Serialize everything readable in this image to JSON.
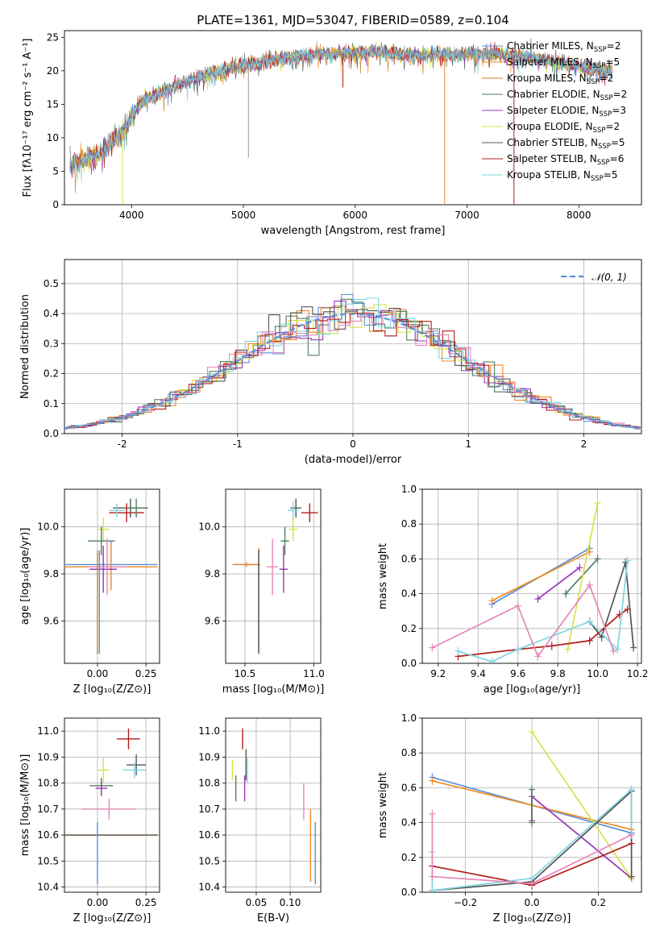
{
  "figure": {
    "title": "PLATE=1361, MJD=53047, FIBERID=0589, z=0.104"
  },
  "colors": {
    "chabrier_miles": "#5b8fd9",
    "salpeter_miles": "#f08a24",
    "kroupa_miles": "#d0801e",
    "chabrier_elodie": "#4f7f5f",
    "salpeter_elodie": "#9b35b5",
    "kroupa_elodie": "#d9e04a",
    "chabrier_stelib": "#555555",
    "salpeter_stelib": "#b51d1d",
    "kroupa_stelib": "#7fd6e0",
    "pink": "#e687b8",
    "normal_dashed": "#5b8fd9"
  },
  "chart_data": [
    {
      "type": "line",
      "name": "spectrum",
      "xlabel": "wavelength [Angstrom, rest frame]",
      "ylabel": "Flux [fλ10⁻¹⁷ erg cm⁻² s⁻¹ A⁻¹]",
      "xlim": [
        3400,
        8560
      ],
      "ylim": [
        0,
        26
      ],
      "xticks": [
        4000,
        5000,
        6000,
        7000,
        8000
      ],
      "yticks": [
        0,
        5,
        10,
        15,
        20,
        25
      ],
      "grid": false,
      "legend": [
        {
          "label": "Chabrier MILES, N",
          "sub": "SSP",
          "suffix": "=2",
          "color": "chabrier_miles"
        },
        {
          "label": "Salpeter MILES, N",
          "sub": "SSP",
          "suffix": "=5",
          "color": "salpeter_miles"
        },
        {
          "label": "Kroupa MILES, N",
          "sub": "SSP",
          "suffix": "=2",
          "color": "kroupa_miles"
        },
        {
          "label": "Chabrier ELODIE, N",
          "sub": "SSP",
          "suffix": "=2",
          "color": "chabrier_elodie"
        },
        {
          "label": "Salpeter ELODIE, N",
          "sub": "SSP",
          "suffix": "=3",
          "color": "salpeter_elodie"
        },
        {
          "label": "Kroupa ELODIE, N",
          "sub": "SSP",
          "suffix": "=2",
          "color": "kroupa_elodie"
        },
        {
          "label": "Chabrier STELIB, N",
          "sub": "SSP",
          "suffix": "=5",
          "color": "chabrier_stelib"
        },
        {
          "label": "Salpeter STELIB, N",
          "sub": "SSP",
          "suffix": "=6",
          "color": "salpeter_stelib"
        },
        {
          "label": "Kroupa STELIB, N",
          "sub": "SSP",
          "suffix": "=5",
          "color": "kroupa_stelib"
        }
      ],
      "continuum": [
        [
          3450,
          5.8
        ],
        [
          3600,
          6.8
        ],
        [
          3700,
          7.5
        ],
        [
          3850,
          10.0
        ],
        [
          3950,
          11.2
        ],
        [
          4000,
          13.5
        ],
        [
          4100,
          15.5
        ],
        [
          4300,
          17.0
        ],
        [
          4500,
          18.5
        ],
        [
          4700,
          19.5
        ],
        [
          4900,
          20.5
        ],
        [
          5100,
          21.0
        ],
        [
          5300,
          21.8
        ],
        [
          5500,
          22.2
        ],
        [
          5700,
          22.5
        ],
        [
          5900,
          22.6
        ],
        [
          6100,
          22.8
        ],
        [
          6300,
          22.6
        ],
        [
          6500,
          22.3
        ],
        [
          6700,
          22.3
        ],
        [
          6900,
          22.4
        ],
        [
          7100,
          22.6
        ],
        [
          7300,
          22.6
        ],
        [
          7500,
          22.2
        ],
        [
          7700,
          21.6
        ],
        [
          7900,
          21.0
        ],
        [
          8100,
          20.4
        ],
        [
          8300,
          19.8
        ],
        [
          8560,
          19.4
        ]
      ],
      "spikes": [
        {
          "x": 5045,
          "y": 7.0
        },
        {
          "x": 5890,
          "y": 17.5
        },
        {
          "x": 6800,
          "y": 0.0
        },
        {
          "x": 7420,
          "y": 0.0
        },
        {
          "x": 3920,
          "y": 0.0
        }
      ]
    },
    {
      "type": "histogram",
      "name": "residuals",
      "xlabel": "(data-model)/error",
      "ylabel": "Normed distribution",
      "xlim": [
        -2.5,
        2.5
      ],
      "ylim": [
        0,
        0.58
      ],
      "xticks": [
        -2,
        -1,
        0,
        1,
        2
      ],
      "yticks": [
        0.0,
        0.1,
        0.2,
        0.3,
        0.4,
        0.5
      ],
      "grid": true,
      "bin_width": 0.1,
      "legend": [
        {
          "label": "𝒩(0, 1)",
          "style": "dashed",
          "color": "normal_dashed"
        }
      ],
      "series_colors": [
        "chabrier_miles",
        "salpeter_miles",
        "chabrier_elodie",
        "salpeter_elodie",
        "kroupa_elodie",
        "chabrier_stelib",
        "salpeter_stelib",
        "kroupa_stelib",
        "pink"
      ]
    },
    {
      "type": "errorbar",
      "name": "age-vs-Z",
      "xlabel": "Z [log₁₀(Z/Z⊙)]",
      "ylabel": "age  [log₁₀(age/yr)]",
      "xlim": [
        -0.17,
        0.32
      ],
      "ylim": [
        9.42,
        10.16
      ],
      "xticks": [
        0.0,
        0.25
      ],
      "xticklabels": [
        "0.00",
        "0.25"
      ],
      "yticks": [
        9.6,
        9.8,
        10.0
      ],
      "grid": true,
      "points": [
        {
          "x": 0.17,
          "y": 10.08,
          "xerr": 0.09,
          "yerr": 0.04,
          "color": "chabrier_stelib"
        },
        {
          "x": 0.15,
          "y": 10.06,
          "xerr": 0.09,
          "yerr": 0.04,
          "color": "salpeter_stelib"
        },
        {
          "x": 0.2,
          "y": 10.08,
          "xerr": 0.05,
          "yerr": 0.04,
          "color": "chabrier_elodie"
        },
        {
          "x": 0.1,
          "y": 10.07,
          "xerr": 0.04,
          "yerr": 0.03,
          "color": "kroupa_stelib"
        },
        {
          "x": 0.03,
          "y": 9.99,
          "xerr": 0.03,
          "yerr": 0.05,
          "color": "kroupa_elodie"
        },
        {
          "x": 0.02,
          "y": 9.94,
          "xerr": 0.07,
          "yerr": 0.06,
          "color": "chabrier_elodie"
        },
        {
          "x": 0.07,
          "y": 9.84,
          "xerr": 0.24,
          "yerr": 0.1,
          "color": "chabrier_miles"
        },
        {
          "x": 0.07,
          "y": 9.83,
          "xerr": 0.24,
          "yerr": 0.1,
          "color": "salpeter_miles"
        },
        {
          "x": 0.03,
          "y": 9.82,
          "xerr": 0.07,
          "yerr": 0.1,
          "color": "salpeter_elodie"
        },
        {
          "x": 0.05,
          "y": 9.83,
          "xerr": 0.1,
          "yerr": 0.12,
          "color": "pink"
        },
        {
          "x": 0.01,
          "y": 9.68,
          "xerr": 0.0,
          "yerr": 0.22,
          "color": "chabrier_miles"
        },
        {
          "x": 0.0,
          "y": 9.68,
          "xerr": 0.0,
          "yerr": 0.22,
          "color": "kroupa_miles"
        }
      ]
    },
    {
      "type": "errorbar",
      "name": "age-vs-mass",
      "xlabel": "mass [log₁₀(M/M⊙)]",
      "ylabel": "",
      "xlim": [
        10.36,
        11.05
      ],
      "ylim": [
        9.42,
        10.16
      ],
      "xticks": [
        10.5,
        11.0
      ],
      "xticklabels": [
        "10.5",
        "11.0"
      ],
      "yticks": [
        9.6,
        9.8,
        10.0
      ],
      "grid": true,
      "points": [
        {
          "x": 10.97,
          "y": 10.06,
          "xerr": 0.06,
          "yerr": 0.04,
          "color": "salpeter_stelib"
        },
        {
          "x": 10.87,
          "y": 10.08,
          "xerr": 0.04,
          "yerr": 0.04,
          "color": "chabrier_stelib"
        },
        {
          "x": 10.85,
          "y": 10.07,
          "xerr": 0.04,
          "yerr": 0.04,
          "color": "kroupa_stelib"
        },
        {
          "x": 10.79,
          "y": 9.94,
          "xerr": 0.03,
          "yerr": 0.06,
          "color": "chabrier_elodie"
        },
        {
          "x": 10.85,
          "y": 9.99,
          "xerr": 0.03,
          "yerr": 0.05,
          "color": "kroupa_elodie"
        },
        {
          "x": 10.78,
          "y": 9.82,
          "xerr": 0.03,
          "yerr": 0.1,
          "color": "salpeter_elodie"
        },
        {
          "x": 10.7,
          "y": 9.83,
          "xerr": 0.04,
          "yerr": 0.12,
          "color": "pink"
        },
        {
          "x": 10.51,
          "y": 9.84,
          "xerr": 0.1,
          "yerr": 0.01,
          "color": "chabrier_miles"
        },
        {
          "x": 10.51,
          "y": 9.84,
          "xerr": 0.1,
          "yerr": 0.01,
          "color": "salpeter_miles"
        },
        {
          "x": 10.6,
          "y": 9.69,
          "xerr": 0.0,
          "yerr": 0.22,
          "color": "kroupa_miles"
        },
        {
          "x": 10.6,
          "y": 9.68,
          "xerr": 0.0,
          "yerr": 0.22,
          "color": "chabrier_stelib"
        }
      ]
    },
    {
      "type": "line",
      "name": "weight-vs-age",
      "xlabel": "age  [log₁₀(age/yr)]",
      "ylabel": "mass weight",
      "xlim": [
        9.12,
        10.22
      ],
      "ylim": [
        0,
        1.0
      ],
      "xticks": [
        9.2,
        9.4,
        9.6,
        9.8,
        10.0,
        10.2
      ],
      "xticklabels": [
        "9.2",
        "9.4",
        "9.6",
        "9.8",
        "10.0",
        "10.2"
      ],
      "yticks": [
        0.0,
        0.2,
        0.4,
        0.6,
        0.8,
        1.0
      ],
      "grid": true,
      "series": [
        {
          "color": "chabrier_miles",
          "x": [
            9.47,
            9.96
          ],
          "y": [
            0.34,
            0.66
          ]
        },
        {
          "color": "salpeter_miles",
          "x": [
            9.47,
            9.96
          ],
          "y": [
            0.36,
            0.64
          ]
        },
        {
          "color": "salpeter_elodie",
          "x": [
            9.7,
            9.91
          ],
          "y": [
            0.37,
            0.55
          ]
        },
        {
          "color": "chabrier_elodie",
          "x": [
            9.84,
            10.0
          ],
          "y": [
            0.4,
            0.6
          ]
        },
        {
          "color": "kroupa_elodie",
          "x": [
            9.85,
            10.0
          ],
          "y": [
            0.08,
            0.92
          ]
        },
        {
          "color": "chabrier_stelib",
          "x": [
            9.96,
            10.02,
            10.14,
            10.18
          ],
          "y": [
            0.24,
            0.15,
            0.58,
            0.09
          ]
        },
        {
          "color": "salpeter_stelib",
          "x": [
            9.3,
            9.6,
            9.77,
            9.96,
            10.11,
            10.15
          ],
          "y": [
            0.04,
            0.08,
            0.1,
            0.13,
            0.28,
            0.31
          ]
        },
        {
          "color": "kroupa_stelib",
          "x": [
            9.3,
            9.47,
            9.6,
            9.96,
            10.1,
            10.15
          ],
          "y": [
            0.07,
            0.01,
            0.08,
            0.24,
            0.08,
            0.59
          ]
        },
        {
          "color": "pink",
          "x": [
            9.17,
            9.6,
            9.7,
            9.96,
            10.08
          ],
          "y": [
            0.09,
            0.33,
            0.04,
            0.45,
            0.07
          ]
        }
      ]
    },
    {
      "type": "errorbar",
      "name": "mass-vs-Z",
      "xlabel": "Z [log₁₀(Z/Z⊙)]",
      "ylabel": "mass [log₁₀(M/M⊙)]",
      "xlim": [
        -0.17,
        0.32
      ],
      "ylim": [
        10.38,
        11.05
      ],
      "xticks": [
        0.0,
        0.25
      ],
      "xticklabels": [
        "0.00",
        "0.25"
      ],
      "yticks": [
        10.4,
        10.5,
        10.6,
        10.7,
        10.8,
        10.9,
        11.0
      ],
      "grid": true,
      "points": [
        {
          "x": 0.16,
          "y": 10.97,
          "xerr": 0.06,
          "yerr": 0.04,
          "color": "salpeter_stelib"
        },
        {
          "x": 0.2,
          "y": 10.87,
          "xerr": 0.05,
          "yerr": 0.04,
          "color": "chabrier_stelib"
        },
        {
          "x": 0.19,
          "y": 10.85,
          "xerr": 0.06,
          "yerr": 0.03,
          "color": "kroupa_stelib"
        },
        {
          "x": 0.03,
          "y": 10.85,
          "xerr": 0.03,
          "yerr": 0.05,
          "color": "kroupa_elodie"
        },
        {
          "x": 0.02,
          "y": 10.79,
          "xerr": 0.06,
          "yerr": 0.03,
          "color": "chabrier_elodie"
        },
        {
          "x": 0.02,
          "y": 10.78,
          "xerr": 0.03,
          "yerr": 0.03,
          "color": "salpeter_elodie"
        },
        {
          "x": 0.06,
          "y": 10.7,
          "xerr": 0.14,
          "yerr": 0.04,
          "color": "pink"
        },
        {
          "x": 0.07,
          "y": 10.6,
          "xerr": 0.24,
          "yerr": 0.0,
          "color": "salpeter_miles"
        },
        {
          "x": 0.07,
          "y": 10.6,
          "xerr": 0.24,
          "yerr": 0.0,
          "color": "chabrier_stelib"
        },
        {
          "x": 0.0,
          "y": 10.53,
          "xerr": 0.0,
          "yerr": 0.12,
          "color": "chabrier_miles"
        }
      ]
    },
    {
      "type": "errorbar",
      "name": "mass-vs-EBV",
      "xlabel": "E(B-V)",
      "ylabel": "",
      "xlim": [
        0.005,
        0.145
      ],
      "ylim": [
        10.38,
        11.05
      ],
      "xticks": [
        0.05,
        0.1
      ],
      "xticklabels": [
        "0.05",
        "0.10"
      ],
      "yticks": [
        10.4,
        10.5,
        10.6,
        10.7,
        10.8,
        10.9,
        11.0
      ],
      "grid": true,
      "points": [
        {
          "x": 0.015,
          "y": 10.85,
          "xerr": 0.0,
          "yerr": 0.04,
          "color": "kroupa_elodie"
        },
        {
          "x": 0.02,
          "y": 10.78,
          "xerr": 0.0,
          "yerr": 0.05,
          "color": "chabrier_elodie"
        },
        {
          "x": 0.03,
          "y": 10.97,
          "xerr": 0.0,
          "yerr": 0.04,
          "color": "salpeter_stelib"
        },
        {
          "x": 0.035,
          "y": 10.87,
          "xerr": 0.0,
          "yerr": 0.06,
          "color": "chabrier_stelib"
        },
        {
          "x": 0.037,
          "y": 10.85,
          "xerr": 0.0,
          "yerr": 0.05,
          "color": "kroupa_stelib"
        },
        {
          "x": 0.033,
          "y": 10.78,
          "xerr": 0.0,
          "yerr": 0.05,
          "color": "salpeter_elodie"
        },
        {
          "x": 0.12,
          "y": 10.73,
          "xerr": 0.0,
          "yerr": 0.07,
          "color": "pink"
        },
        {
          "x": 0.13,
          "y": 10.56,
          "xerr": 0.0,
          "yerr": 0.14,
          "color": "salpeter_miles"
        },
        {
          "x": 0.137,
          "y": 10.53,
          "xerr": 0.0,
          "yerr": 0.12,
          "color": "chabrier_miles"
        }
      ]
    },
    {
      "type": "line",
      "name": "weight-vs-Z",
      "xlabel": "Z [log₁₀(Z/Z⊙)]",
      "ylabel": "mass weight",
      "xlim": [
        -0.33,
        0.33
      ],
      "ylim": [
        0,
        1.0
      ],
      "xticks": [
        -0.2,
        0.0,
        0.2
      ],
      "xticklabels": [
        "−0.2",
        "0.0",
        "0.2"
      ],
      "yticks": [
        0.0,
        0.2,
        0.4,
        0.6,
        0.8,
        1.0
      ],
      "grid": true,
      "series": [
        {
          "color": "chabrier_miles",
          "x": [
            -0.3,
            0.3
          ],
          "y": [
            0.66,
            0.34
          ]
        },
        {
          "color": "salpeter_miles",
          "x": [
            -0.3,
            0.3
          ],
          "y": [
            0.64,
            0.36
          ]
        },
        {
          "color": "salpeter_elodie",
          "x": [
            0.0,
            0.0,
            0.3
          ],
          "y": [
            0.41,
            0.55,
            0.08
          ]
        },
        {
          "color": "chabrier_elodie",
          "x": [
            0.0,
            0.0
          ],
          "y": [
            0.4,
            0.59
          ]
        },
        {
          "color": "kroupa_elodie",
          "x": [
            0.0,
            0.3
          ],
          "y": [
            0.92,
            0.08
          ]
        },
        {
          "color": "chabrier_stelib",
          "x": [
            -0.3,
            0.0,
            0.3,
            0.3
          ],
          "y": [
            0.01,
            0.06,
            0.58,
            0.09
          ]
        },
        {
          "color": "salpeter_stelib",
          "x": [
            -0.3,
            0.0,
            0.3
          ],
          "y": [
            0.15,
            0.04,
            0.28
          ]
        },
        {
          "color": "kroupa_stelib",
          "x": [
            -0.3,
            -0.3,
            0.0,
            0.3,
            0.3
          ],
          "y": [
            0.23,
            0.01,
            0.08,
            0.59,
            0.33
          ]
        },
        {
          "color": "pink",
          "x": [
            -0.3,
            -0.3,
            0.0,
            0.3
          ],
          "y": [
            0.45,
            0.09,
            0.05,
            0.33
          ]
        }
      ]
    }
  ]
}
